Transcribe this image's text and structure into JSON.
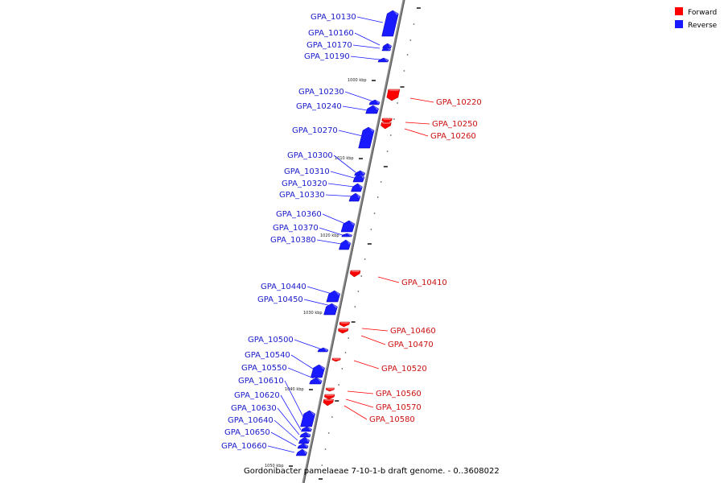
{
  "caption": "Gordonibacter pamelaeae 7-10-1-b draft genome. - 0..3608022",
  "legend": [
    {
      "label": "Forward",
      "color": "#ff0000"
    },
    {
      "label": "Reverse",
      "color": "#1a1aff"
    }
  ],
  "colors": {
    "forward": "#ff0000",
    "reverse": "#1a1aff",
    "axis": "#777777"
  },
  "kbp_labels": [
    "1000 kbp",
    "1010 kbp",
    "1020 kbp",
    "1030 kbp",
    "1040 kbp",
    "1050 kbp"
  ],
  "genes": [
    {
      "id": "GPA_10130",
      "strand": "reverse"
    },
    {
      "id": "GPA_10160",
      "strand": "reverse"
    },
    {
      "id": "GPA_10170",
      "strand": "reverse"
    },
    {
      "id": "GPA_10190",
      "strand": "reverse"
    },
    {
      "id": "GPA_10220",
      "strand": "forward"
    },
    {
      "id": "GPA_10230",
      "strand": "reverse"
    },
    {
      "id": "GPA_10240",
      "strand": "reverse"
    },
    {
      "id": "GPA_10250",
      "strand": "forward"
    },
    {
      "id": "GPA_10260",
      "strand": "forward"
    },
    {
      "id": "GPA_10270",
      "strand": "reverse"
    },
    {
      "id": "GPA_10300",
      "strand": "reverse"
    },
    {
      "id": "GPA_10310",
      "strand": "reverse"
    },
    {
      "id": "GPA_10320",
      "strand": "reverse"
    },
    {
      "id": "GPA_10330",
      "strand": "reverse"
    },
    {
      "id": "GPA_10360",
      "strand": "reverse"
    },
    {
      "id": "GPA_10370",
      "strand": "reverse"
    },
    {
      "id": "GPA_10380",
      "strand": "reverse"
    },
    {
      "id": "GPA_10410",
      "strand": "forward"
    },
    {
      "id": "GPA_10440",
      "strand": "reverse"
    },
    {
      "id": "GPA_10450",
      "strand": "reverse"
    },
    {
      "id": "GPA_10460",
      "strand": "forward"
    },
    {
      "id": "GPA_10470",
      "strand": "forward"
    },
    {
      "id": "GPA_10500",
      "strand": "reverse"
    },
    {
      "id": "GPA_10520",
      "strand": "forward"
    },
    {
      "id": "GPA_10540",
      "strand": "reverse"
    },
    {
      "id": "GPA_10550",
      "strand": "reverse"
    },
    {
      "id": "GPA_10560",
      "strand": "forward"
    },
    {
      "id": "GPA_10570",
      "strand": "forward"
    },
    {
      "id": "GPA_10580",
      "strand": "forward"
    },
    {
      "id": "GPA_10610",
      "strand": "reverse"
    },
    {
      "id": "GPA_10620",
      "strand": "reverse"
    },
    {
      "id": "GPA_10630",
      "strand": "reverse"
    },
    {
      "id": "GPA_10640",
      "strand": "reverse"
    },
    {
      "id": "GPA_10650",
      "strand": "reverse"
    },
    {
      "id": "GPA_10660",
      "strand": "reverse"
    }
  ]
}
